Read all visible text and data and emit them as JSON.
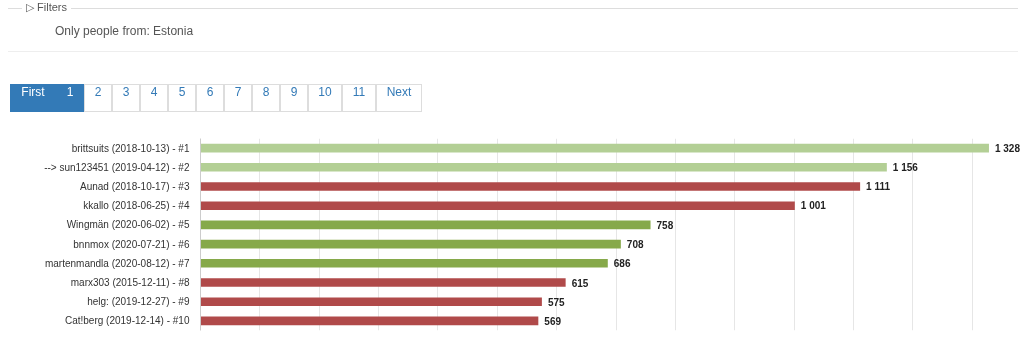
{
  "chart_data": {
    "type": "bar",
    "orientation": "horizontal",
    "categories": [
      "brittsuits (2018-10-13) - #1",
      "--> sun123451 (2019-04-12) - #2",
      "Aunad (2018-10-17) - #3",
      "kkallo (2018-06-25) - #4",
      "Wingmän (2020-06-02) - #5",
      "bnnmox (2020-07-21) - #6",
      "martenmandla (2020-08-12) - #7",
      "marx303 (2015-12-11) - #8",
      "helg: (2019-12-27) - #9",
      "Cat!berg (2019-12-14) - #10"
    ],
    "values": [
      1328,
      1156,
      1111,
      1001,
      758,
      708,
      686,
      615,
      575,
      569
    ],
    "value_labels": [
      "1 328",
      "1 156",
      "1 111",
      "1 001",
      "758",
      "708",
      "686",
      "615",
      "575",
      "569"
    ],
    "colors": [
      "#b3cf95",
      "#b3cf95",
      "#b04a4a",
      "#b04a4a",
      "#86a94a",
      "#86a94a",
      "#86a94a",
      "#b04a4a",
      "#b04a4a",
      "#b04a4a"
    ],
    "xticks": [
      {
        "value": 0,
        "label": null
      },
      {
        "value": 100,
        "label": null
      },
      {
        "value": 200,
        "label": null
      },
      {
        "value": 300,
        "label": null
      },
      {
        "value": 400,
        "label": null
      },
      {
        "value": 500,
        "label": null
      },
      {
        "value": 600,
        "label": null
      },
      {
        "value": 700,
        "label": null
      },
      {
        "value": 800,
        "label": null
      },
      {
        "value": 900,
        "label": null
      },
      {
        "value": 1000,
        "label": null
      },
      {
        "value": 1100,
        "label": null
      },
      {
        "value": 1200,
        "label": null
      },
      {
        "value": 1300,
        "label": null
      }
    ],
    "tick_labels": "y",
    "grid": "x",
    "annotations": [
      "▷ Filters",
      "Only people from: Estonia",
      "First",
      "1",
      "2",
      "3",
      "4",
      "5",
      "6",
      "7",
      "8",
      "9",
      "10",
      "11",
      "Next"
    ]
  }
}
